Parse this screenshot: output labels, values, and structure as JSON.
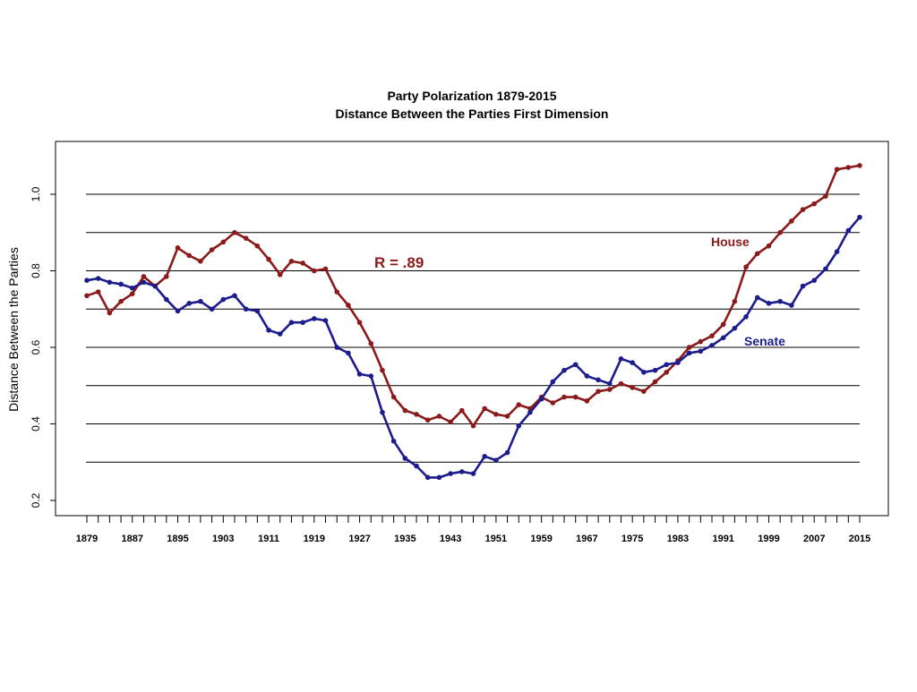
{
  "chart_data": {
    "type": "line",
    "title": "Party Polarization 1879-2015",
    "subtitle": "Distance Between the Parties First Dimension",
    "xlabel": "",
    "ylabel": "Distance Between the Parties",
    "xlim": [
      1879,
      2015
    ],
    "ylim": [
      0.2,
      1.1
    ],
    "y_ticks": [
      "0.2",
      "0.4",
      "0.6",
      "0.8",
      "1.0"
    ],
    "x_tick_labels": [
      "1879",
      "1887",
      "1895",
      "1903",
      "1911",
      "1919",
      "1927",
      "1935",
      "1943",
      "1951",
      "1959",
      "1967",
      "1975",
      "1983",
      "1991",
      "1999",
      "2007",
      "2015"
    ],
    "gridlines": [
      0.3,
      0.4,
      0.5,
      0.6,
      0.7,
      0.8,
      0.9,
      1.0
    ],
    "annotations": {
      "r_label": "R = .89",
      "house_label": "House",
      "senate_label": "Senate"
    },
    "colors": {
      "house": "#8b1a1a",
      "senate": "#1c1c8c"
    },
    "series": [
      {
        "name": "House",
        "x": [
          1879,
          1881,
          1883,
          1885,
          1887,
          1889,
          1891,
          1893,
          1895,
          1897,
          1899,
          1901,
          1903,
          1905,
          1907,
          1909,
          1911,
          1913,
          1915,
          1917,
          1919,
          1921,
          1923,
          1925,
          1927,
          1929,
          1931,
          1933,
          1935,
          1937,
          1939,
          1941,
          1943,
          1945,
          1947,
          1949,
          1951,
          1953,
          1955,
          1957,
          1959,
          1961,
          1963,
          1965,
          1967,
          1969,
          1971,
          1973,
          1975,
          1977,
          1979,
          1981,
          1983,
          1985,
          1987,
          1989,
          1991,
          1993,
          1995,
          1997,
          1999,
          2001,
          2003,
          2005,
          2007,
          2009,
          2011,
          2013,
          2015
        ],
        "values": [
          0.735,
          0.745,
          0.69,
          0.72,
          0.74,
          0.785,
          0.76,
          0.785,
          0.86,
          0.84,
          0.825,
          0.855,
          0.875,
          0.9,
          0.885,
          0.865,
          0.83,
          0.79,
          0.825,
          0.82,
          0.8,
          0.805,
          0.745,
          0.71,
          0.665,
          0.61,
          0.54,
          0.47,
          0.435,
          0.425,
          0.41,
          0.42,
          0.405,
          0.435,
          0.395,
          0.44,
          0.425,
          0.42,
          0.45,
          0.44,
          0.47,
          0.455,
          0.47,
          0.47,
          0.46,
          0.485,
          0.49,
          0.505,
          0.495,
          0.485,
          0.51,
          0.535,
          0.565,
          0.6,
          0.615,
          0.63,
          0.66,
          0.72,
          0.81,
          0.845,
          0.865,
          0.9,
          0.93,
          0.96,
          0.975,
          0.995,
          1.065,
          1.07,
          1.075
        ]
      },
      {
        "name": "Senate",
        "x": [
          1879,
          1881,
          1883,
          1885,
          1887,
          1889,
          1891,
          1893,
          1895,
          1897,
          1899,
          1901,
          1903,
          1905,
          1907,
          1909,
          1911,
          1913,
          1915,
          1917,
          1919,
          1921,
          1923,
          1925,
          1927,
          1929,
          1931,
          1933,
          1935,
          1937,
          1939,
          1941,
          1943,
          1945,
          1947,
          1949,
          1951,
          1953,
          1955,
          1957,
          1959,
          1961,
          1963,
          1965,
          1967,
          1969,
          1971,
          1973,
          1975,
          1977,
          1979,
          1981,
          1983,
          1985,
          1987,
          1989,
          1991,
          1993,
          1995,
          1997,
          1999,
          2001,
          2003,
          2005,
          2007,
          2009,
          2011,
          2013,
          2015
        ],
        "values": [
          0.775,
          0.78,
          0.77,
          0.765,
          0.755,
          0.77,
          0.76,
          0.725,
          0.695,
          0.715,
          0.72,
          0.7,
          0.725,
          0.735,
          0.7,
          0.695,
          0.645,
          0.635,
          0.665,
          0.665,
          0.675,
          0.67,
          0.6,
          0.585,
          0.53,
          0.525,
          0.43,
          0.355,
          0.31,
          0.29,
          0.26,
          0.26,
          0.27,
          0.275,
          0.27,
          0.315,
          0.305,
          0.325,
          0.395,
          0.43,
          0.465,
          0.51,
          0.54,
          0.555,
          0.525,
          0.515,
          0.505,
          0.57,
          0.56,
          0.535,
          0.54,
          0.555,
          0.56,
          0.585,
          0.59,
          0.605,
          0.625,
          0.65,
          0.68,
          0.73,
          0.715,
          0.72,
          0.71,
          0.76,
          0.775,
          0.805,
          0.85,
          0.905,
          0.94
        ]
      }
    ]
  }
}
